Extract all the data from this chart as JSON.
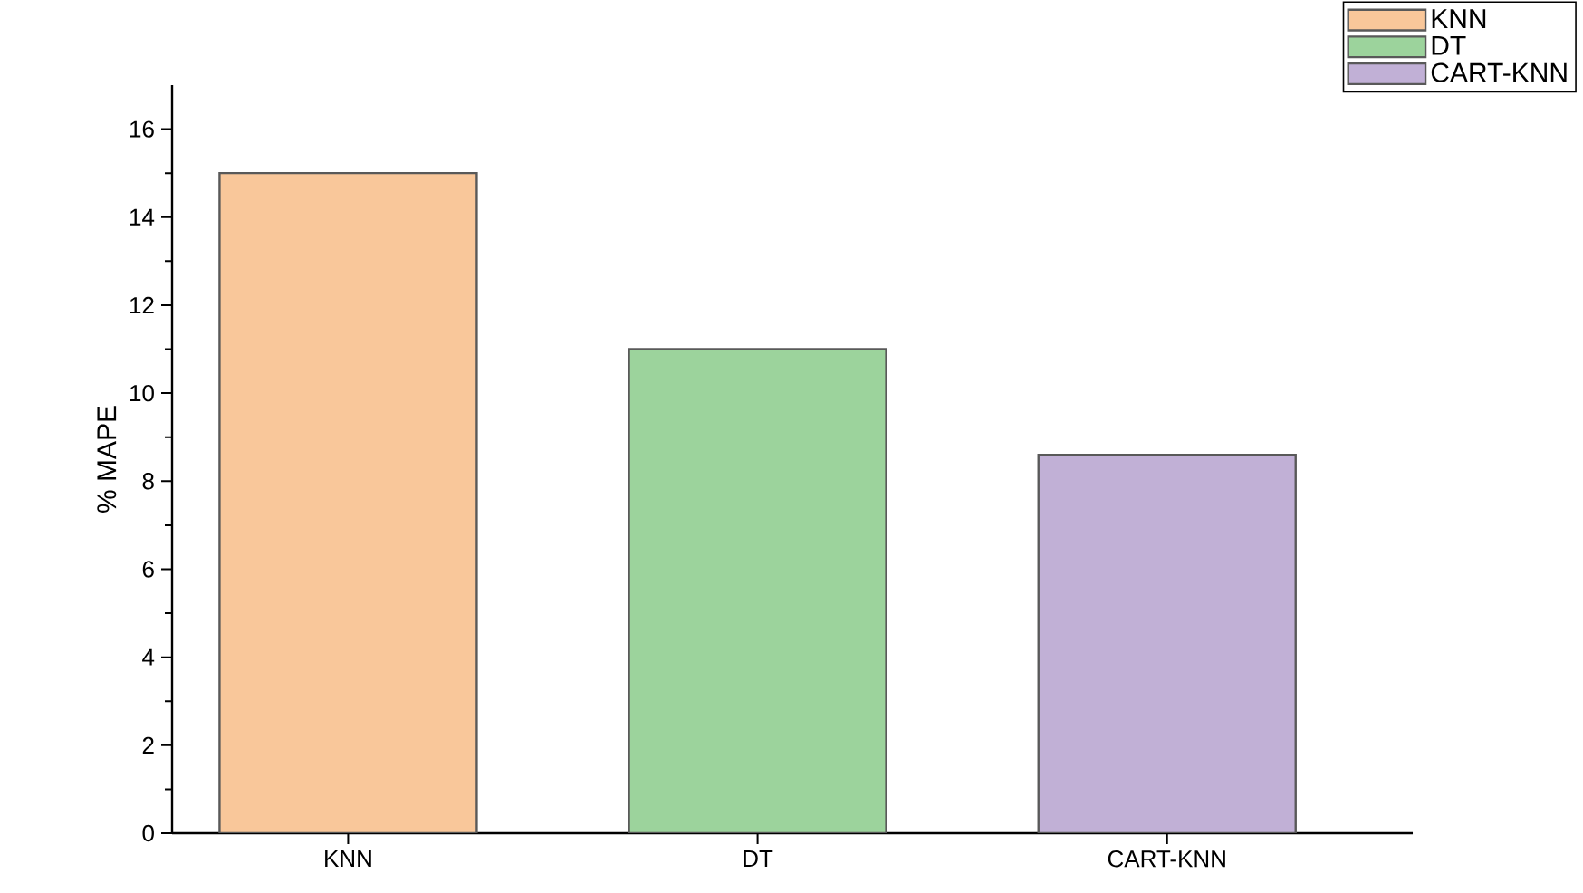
{
  "chart_data": {
    "type": "bar",
    "ylabel": "% MAPE",
    "categories": [
      "KNN",
      "DT",
      "CART-KNN"
    ],
    "series": [
      {
        "name": "KNN",
        "color": "#f9c79a",
        "values": [
          15,
          null,
          null
        ]
      },
      {
        "name": "DT",
        "color": "#9cd39c",
        "values": [
          null,
          11,
          null
        ]
      },
      {
        "name": "CART-KNN",
        "color": "#c1b0d6",
        "values": [
          null,
          null,
          8.6
        ]
      }
    ],
    "ylim": [
      0,
      17
    ],
    "yticks": [
      0,
      2,
      4,
      6,
      8,
      10,
      12,
      14,
      16
    ],
    "grid": false,
    "legend": "top right"
  }
}
